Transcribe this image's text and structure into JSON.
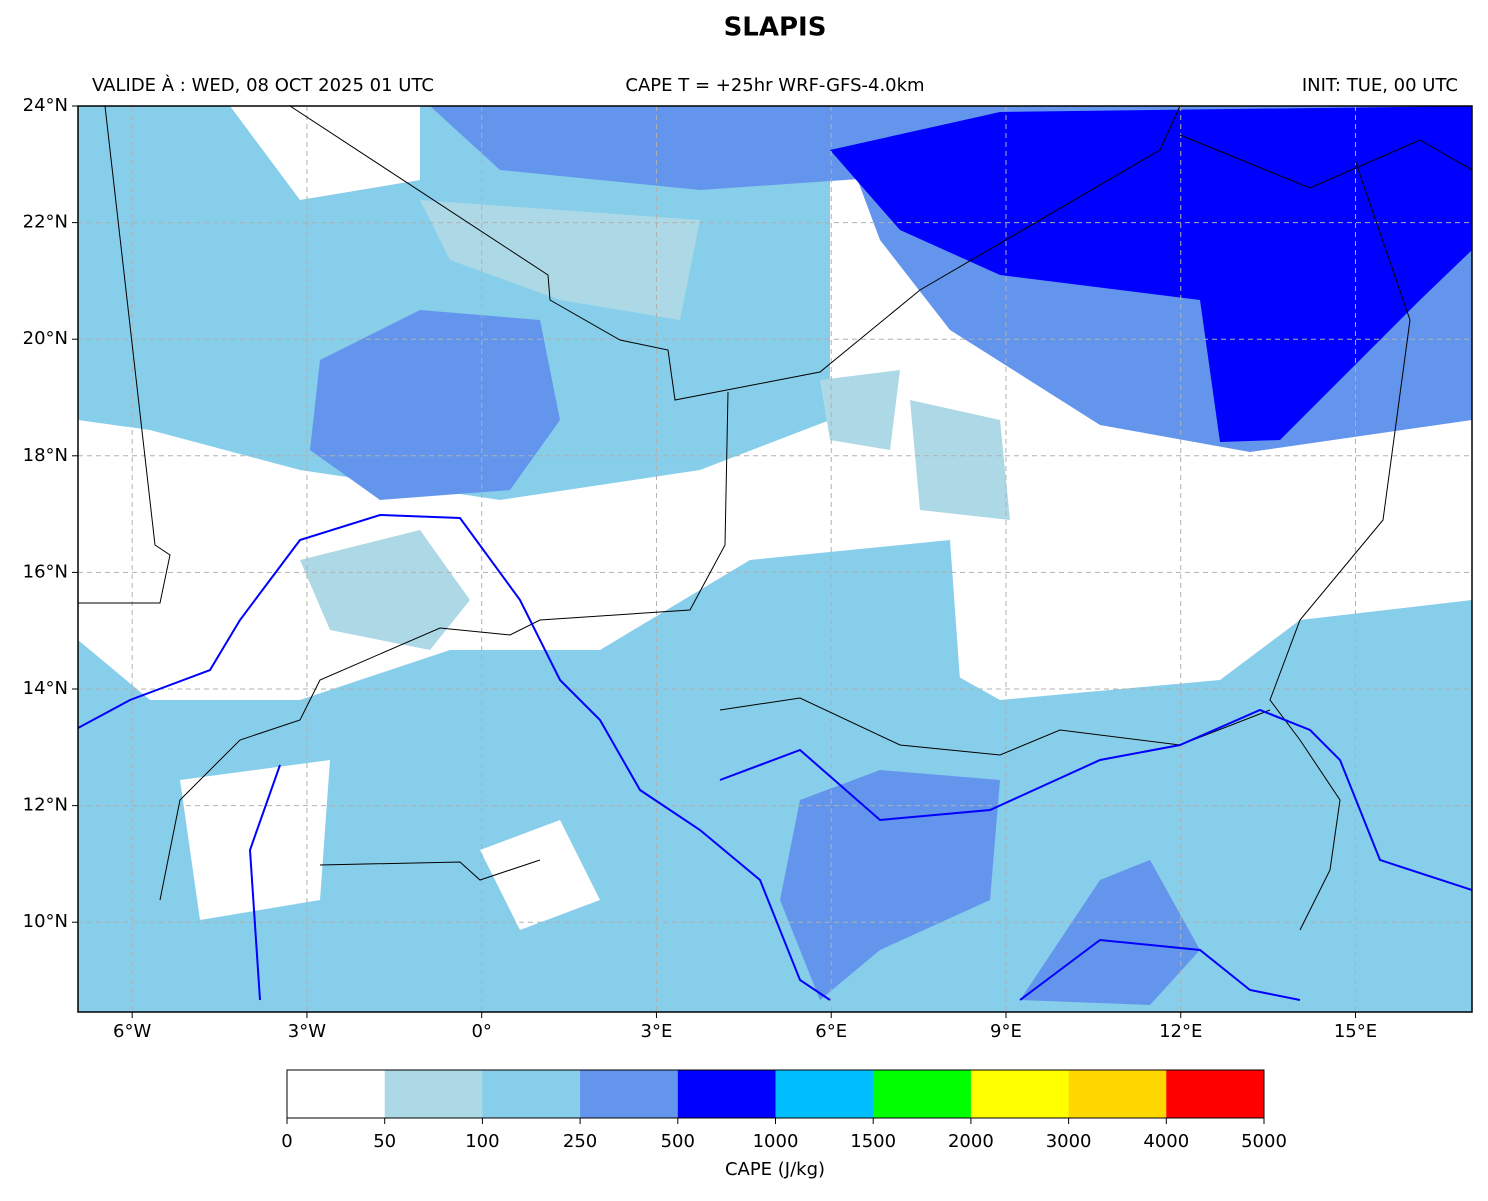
{
  "header": {
    "title": "SLAPIS",
    "valid": "VALIDE À : WED, 08 OCT 2025 01 UTC",
    "product": "CAPE T = +25hr WRF-GFS-4.0km",
    "init": "INIT: TUE, 00 UTC"
  },
  "map": {
    "xlim": [
      -6.93,
      17.0
    ],
    "ylim": [
      8.46,
      24
    ],
    "xticks": [
      {
        "value": -6,
        "label": "6°W"
      },
      {
        "value": -3,
        "label": "3°W"
      },
      {
        "value": 0,
        "label": "0°"
      },
      {
        "value": 3,
        "label": "3°E"
      },
      {
        "value": 6,
        "label": "6°E"
      },
      {
        "value": 9,
        "label": "9°E"
      },
      {
        "value": 12,
        "label": "12°E"
      },
      {
        "value": 15,
        "label": "15°E"
      }
    ],
    "yticks": [
      {
        "value": 10,
        "label": "10°N"
      },
      {
        "value": 12,
        "label": "12°N"
      },
      {
        "value": 14,
        "label": "14°N"
      },
      {
        "value": 16,
        "label": "16°N"
      },
      {
        "value": 18,
        "label": "18°N"
      },
      {
        "value": 20,
        "label": "20°N"
      },
      {
        "value": 22,
        "label": "22°N"
      },
      {
        "value": 24,
        "label": "24°N"
      }
    ],
    "grid": true
  },
  "colorbar": {
    "label": "CAPE (J/kg)",
    "ticks": [
      0,
      50,
      100,
      250,
      500,
      1000,
      1500,
      2000,
      3000,
      4000,
      5000
    ],
    "colors": [
      "#ffffff",
      "#add8e6",
      "#87ceeb",
      "#6495ed",
      "#0000ff",
      "#00bfff",
      "#00ff00",
      "#ffff00",
      "#ffd700",
      "#ff0000"
    ]
  }
}
